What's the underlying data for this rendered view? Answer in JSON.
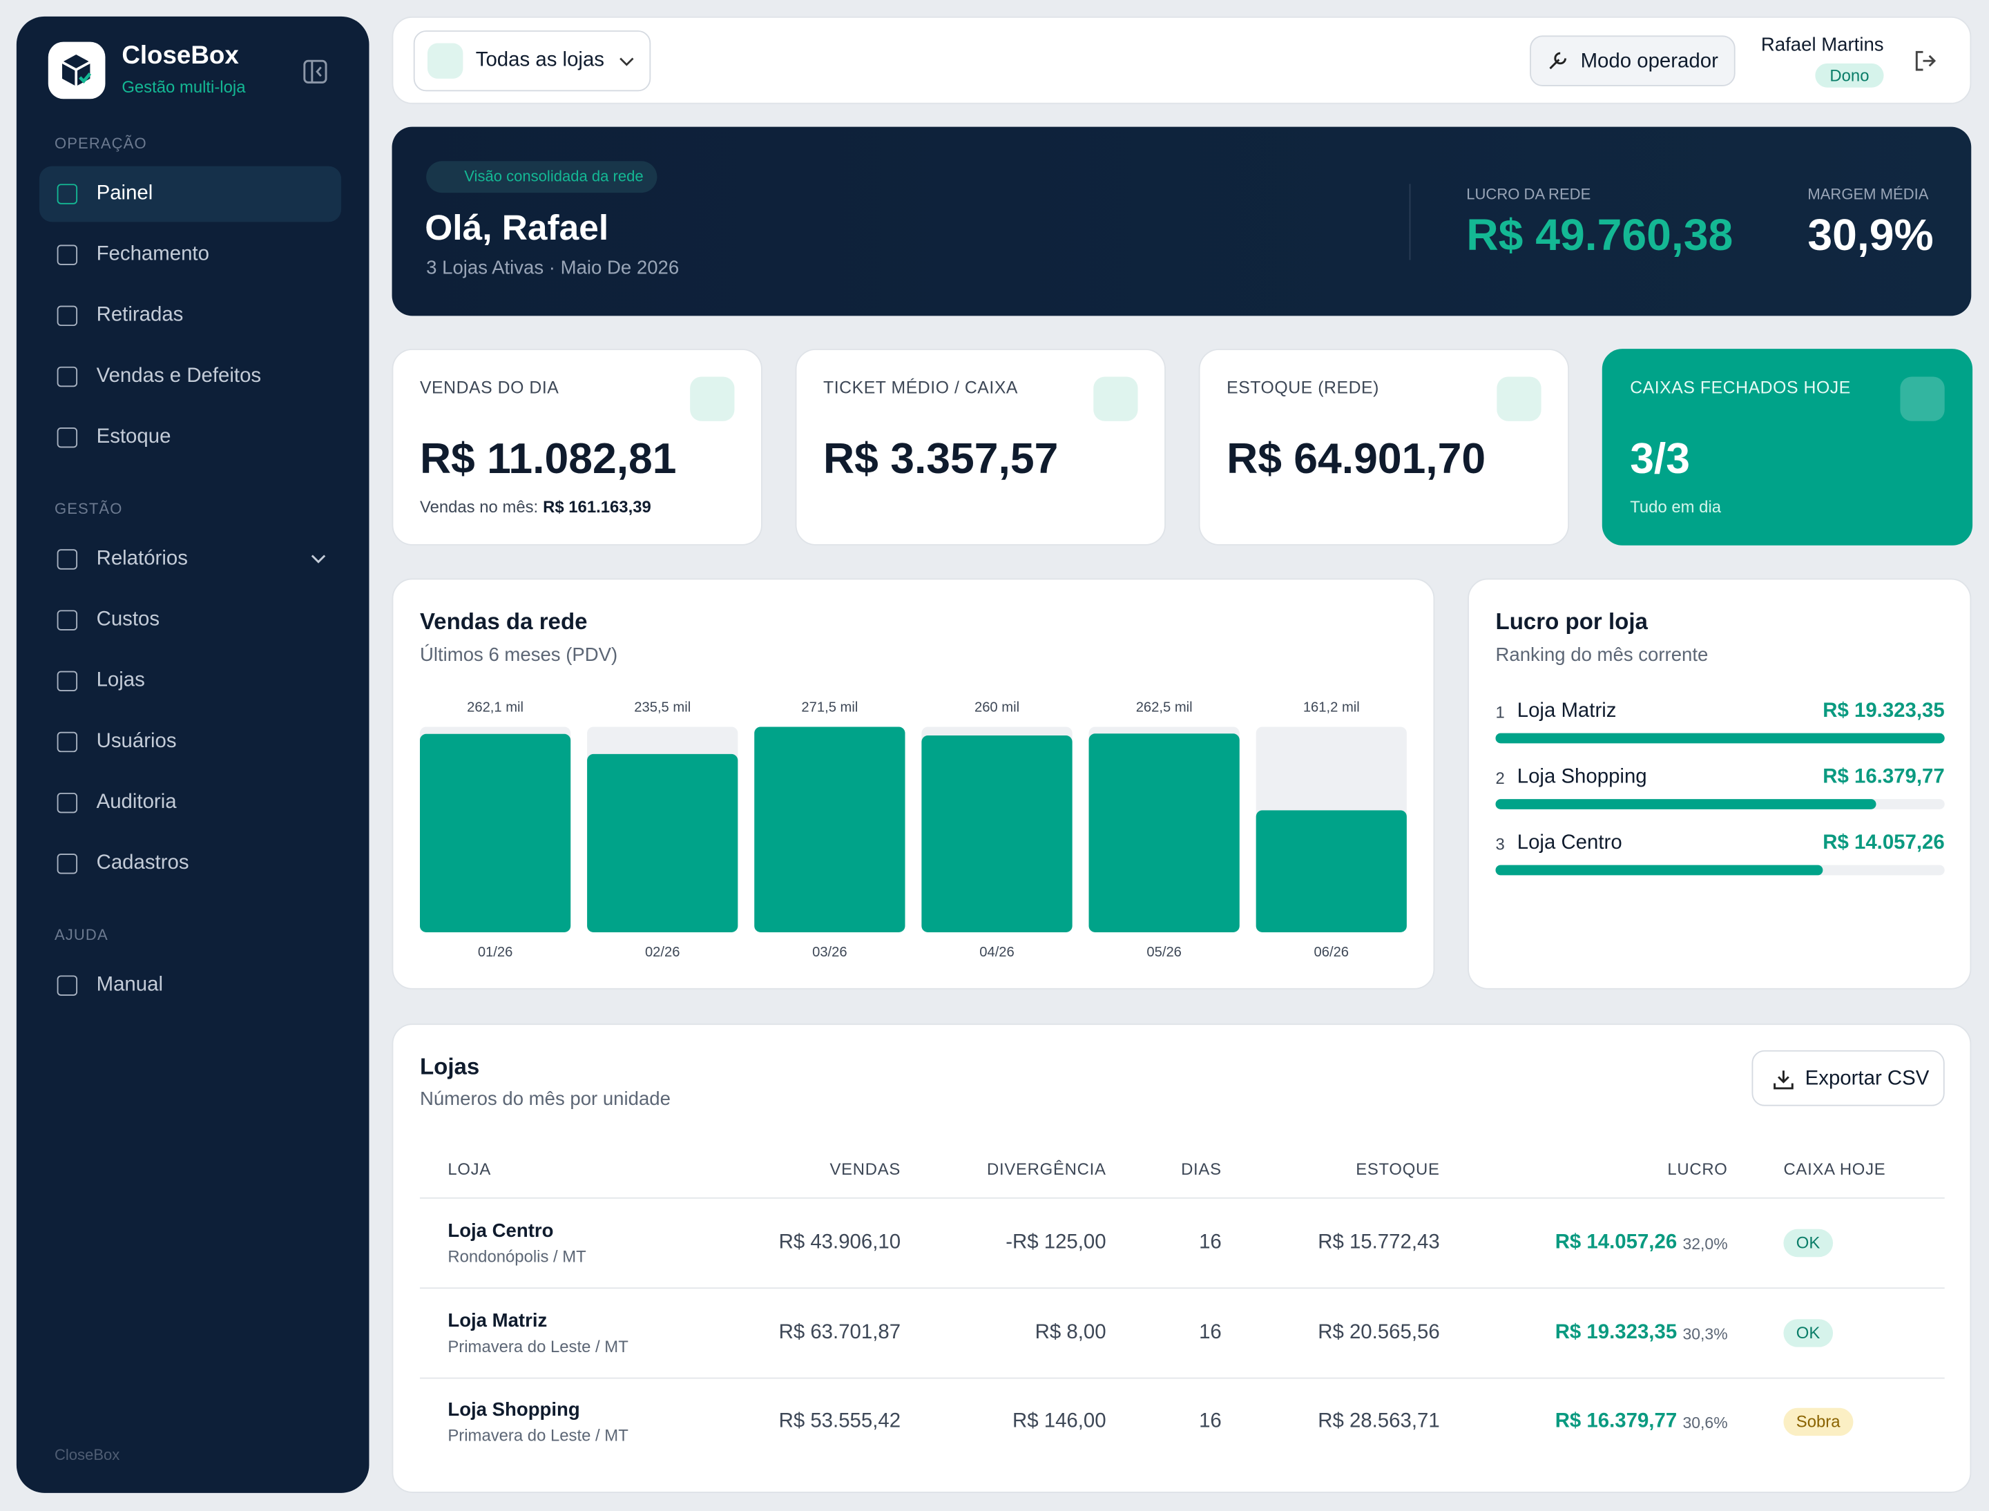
{
  "sidebar": {
    "brand": "CloseBox",
    "tagline": "Gestão multi-loja",
    "sections": [
      {
        "title": "OPERAÇÃO",
        "items": [
          "Painel",
          "Fechamento",
          "Retiradas",
          "Vendas e Defeitos",
          "Estoque"
        ]
      },
      {
        "title": "GESTÃO",
        "items": [
          "Relatórios",
          "Custos",
          "Lojas",
          "Usuários",
          "Auditoria",
          "Cadastros"
        ]
      },
      {
        "title": "AJUDA",
        "items": [
          "Manual"
        ]
      }
    ],
    "footer": "CloseBox"
  },
  "topbar": {
    "store_select": "Todas as lojas",
    "operator_button": "Modo operador",
    "user_name": "Rafael Martins",
    "user_role": "Dono"
  },
  "hero": {
    "badge": "Visão consolidada da rede",
    "greeting": "Olá, Rafael",
    "subtitle": "3 Lojas Ativas · Maio De 2026",
    "stats": [
      {
        "label": "LUCRO DA REDE",
        "value": "R$ 49.760,38"
      },
      {
        "label": "MARGEM MÉDIA",
        "value": "30,9%"
      }
    ]
  },
  "kpis": [
    {
      "label": "VENDAS DO DIA",
      "value": "R$ 11.082,81",
      "note": "Vendas no mês:",
      "note_value": "R$ 161.163,39"
    },
    {
      "label": "TICKET MÉDIO / CAIXA",
      "value": "R$ 3.357,57"
    },
    {
      "label": "ESTOQUE (REDE)",
      "value": "R$ 64.901,70"
    },
    {
      "label": "CAIXAS FECHADOS HOJE",
      "value": "3/3",
      "note": "Tudo em dia"
    }
  ],
  "chart_data": {
    "type": "bar",
    "title": "Vendas da rede",
    "subtitle": "Últimos 6 meses (PDV)",
    "categories": [
      "01/26",
      "02/26",
      "03/26",
      "04/26",
      "05/26",
      "06/26"
    ],
    "values": [
      262.1,
      235.5,
      271.5,
      260,
      262.5,
      161.2
    ],
    "value_labels": [
      "262,1 mil",
      "235,5 mil",
      "271,5 mil",
      "260 mil",
      "262,5 mil",
      "161,2 mil"
    ],
    "color": "#00a389"
  },
  "ranking": {
    "title": "Lucro por loja",
    "subtitle": "Ranking do mês corrente",
    "color": "#00a389",
    "items": [
      {
        "rank": 1,
        "name": "Loja Matriz",
        "value": 19323.35,
        "value_label": "R$ 19.323,35"
      },
      {
        "rank": 2,
        "name": "Loja Shopping",
        "value": 16379.77,
        "value_label": "R$ 16.379,77"
      },
      {
        "rank": 3,
        "name": "Loja Centro",
        "value": 14057.26,
        "value_label": "R$ 14.057,26"
      }
    ]
  },
  "table": {
    "title": "Lojas",
    "subtitle": "Números do mês por unidade",
    "export_button": "Exportar CSV",
    "columns": [
      "LOJA",
      "VENDAS",
      "DIVERGÊNCIA",
      "DIAS",
      "ESTOQUE",
      "LUCRO",
      "CAIXA HOJE"
    ],
    "rows": [
      {
        "store": "Loja Centro",
        "location": "Rondonópolis / MT",
        "sales": "R$ 43.906,10",
        "divergence": "-R$ 125,00",
        "days": 16,
        "stock": "R$ 15.772,43",
        "profit": "R$ 14.057,26",
        "margin": "32,0%",
        "status": "OK",
        "status_color": "#d6f3eb",
        "status_text_color": "#0a7d68"
      },
      {
        "store": "Loja Matriz",
        "location": "Primavera do Leste / MT",
        "sales": "R$ 63.701,87",
        "divergence": "R$ 8,00",
        "days": 16,
        "stock": "R$ 20.565,56",
        "profit": "R$ 19.323,35",
        "margin": "30,3%",
        "status": "OK",
        "status_color": "#d6f3eb",
        "status_text_color": "#0a7d68"
      },
      {
        "store": "Loja Shopping",
        "location": "Primavera do Leste / MT",
        "sales": "R$ 53.555,42",
        "divergence": "R$ 146,00",
        "days": 16,
        "stock": "R$ 28.563,71",
        "profit": "R$ 16.379,77",
        "margin": "30,6%",
        "status": "Sobra",
        "status_color": "#fbefc4",
        "status_text_color": "#8a6300"
      }
    ]
  }
}
